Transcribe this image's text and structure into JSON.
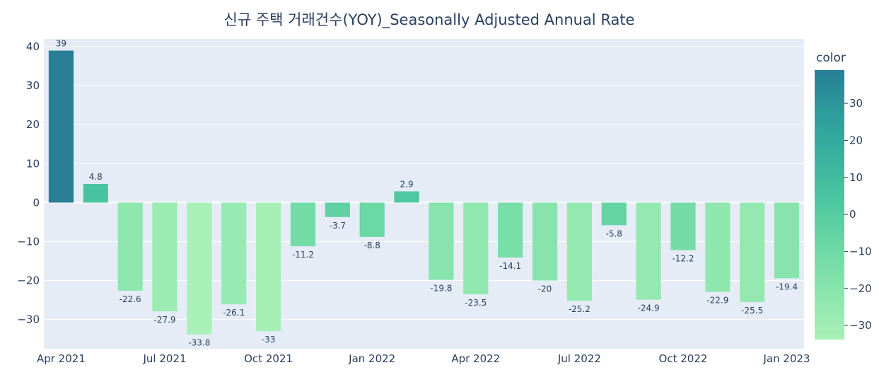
{
  "chart_data": {
    "type": "bar",
    "title": "신규 주택 거래건수(YOY)_Seasonally Adjusted Annual Rate",
    "categories": [
      "2021-04",
      "2021-05",
      "2021-06",
      "2021-07",
      "2021-08",
      "2021-09",
      "2021-10",
      "2021-11",
      "2021-12",
      "2022-01",
      "2022-02",
      "2022-03",
      "2022-04",
      "2022-05",
      "2022-06",
      "2022-07",
      "2022-08",
      "2022-09",
      "2022-10",
      "2022-11",
      "2022-12",
      "2023-01"
    ],
    "values": [
      39,
      4.8,
      -22.6,
      -27.9,
      -33.8,
      -26.1,
      -33,
      -11.2,
      -3.7,
      -8.8,
      2.9,
      -19.8,
      -23.5,
      -14.1,
      -20,
      -25.2,
      -5.8,
      -24.9,
      -12.2,
      -22.9,
      -25.5,
      -19.4
    ],
    "x_tick_labels": [
      "Apr 2021",
      "Jul 2021",
      "Oct 2021",
      "Jan 2022",
      "Apr 2022",
      "Jul 2022",
      "Oct 2022",
      "Jan 2023"
    ],
    "x_tick_categories": [
      "2021-04",
      "2021-07",
      "2021-10",
      "2022-01",
      "2022-04",
      "2022-07",
      "2022-10",
      "2023-01"
    ],
    "ylim": [
      -37.5,
      42
    ],
    "y_ticks": [
      40,
      30,
      20,
      10,
      0,
      -10,
      -20,
      -30
    ],
    "y_tick_labels": [
      "40",
      "30",
      "20",
      "10",
      "0",
      "−10",
      "−20",
      "−30"
    ],
    "colorbar": {
      "title": "color",
      "range": [
        -33.8,
        39
      ],
      "ticks": [
        30,
        20,
        10,
        0,
        -10,
        -20,
        -30
      ],
      "tick_labels": [
        "30",
        "20",
        "10",
        "0",
        "−10",
        "−20",
        "−30"
      ],
      "colors": [
        "#a9f0b8",
        "#8ce6ad",
        "#6ed9a5",
        "#4ec8a0",
        "#39b49e",
        "#2d9e9b",
        "#287f96"
      ]
    },
    "plot_background": "#e5ecf6",
    "grid": true
  }
}
